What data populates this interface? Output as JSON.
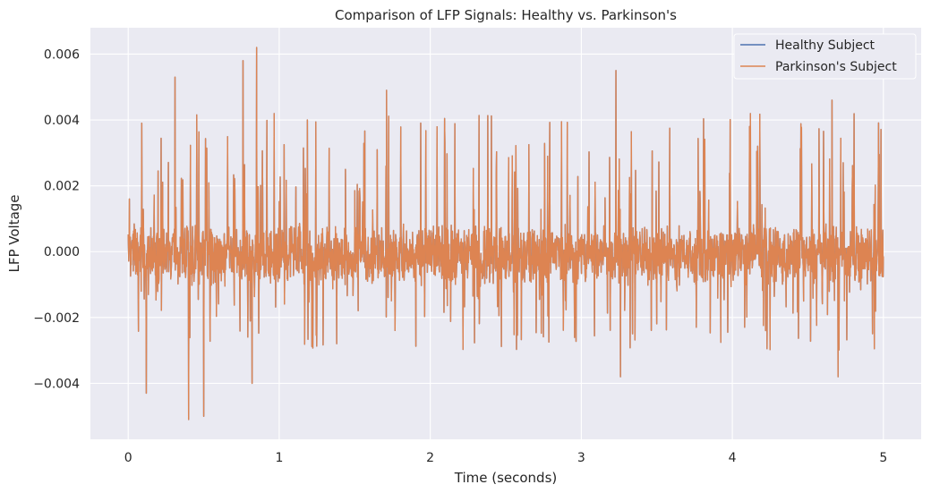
{
  "chart_data": {
    "type": "line",
    "title": "Comparison of LFP Signals: Healthy vs. Parkinson's",
    "xlabel": "Time (seconds)",
    "ylabel": "LFP Voltage",
    "xlim": [
      -0.25,
      5.25
    ],
    "ylim": [
      -0.0057,
      0.0068
    ],
    "x_ticks": [
      0,
      1,
      2,
      3,
      4,
      5
    ],
    "x_tick_labels": [
      "0",
      "1",
      "2",
      "3",
      "4",
      "5"
    ],
    "y_ticks": [
      -0.004,
      -0.002,
      0.0,
      0.002,
      0.004,
      0.006
    ],
    "y_tick_labels": [
      "−0.004",
      "−0.002",
      "0.000",
      "0.002",
      "0.004",
      "0.006"
    ],
    "grid": true,
    "legend_position": "top-right",
    "plot_background": "#eaeaf2",
    "grid_color": "#ffffff",
    "x_range": [
      0,
      5
    ],
    "series": [
      {
        "name": "Healthy Subject",
        "color": "#4c72b0",
        "values": []
      },
      {
        "name": "Parkinson's Subject",
        "color": "#dd8452",
        "values": []
      }
    ],
    "notable_peaks": [
      {
        "x": 0.09,
        "y": 0.0039
      },
      {
        "x": 0.31,
        "y": 0.0053
      },
      {
        "x": 0.4,
        "y": 0.0051
      },
      {
        "x": 0.76,
        "y": 0.0058
      },
      {
        "x": 0.85,
        "y": 0.0062
      },
      {
        "x": 1.71,
        "y": 0.0049
      },
      {
        "x": 3.23,
        "y": 0.0055
      },
      {
        "x": 4.66,
        "y": 0.0046
      }
    ],
    "notable_troughs": [
      {
        "x": 0.12,
        "y": -0.0043
      },
      {
        "x": 0.4,
        "y": -0.0051
      },
      {
        "x": 0.5,
        "y": -0.005
      },
      {
        "x": 0.82,
        "y": -0.004
      },
      {
        "x": 3.26,
        "y": -0.0038
      },
      {
        "x": 4.7,
        "y": -0.0038
      }
    ]
  }
}
